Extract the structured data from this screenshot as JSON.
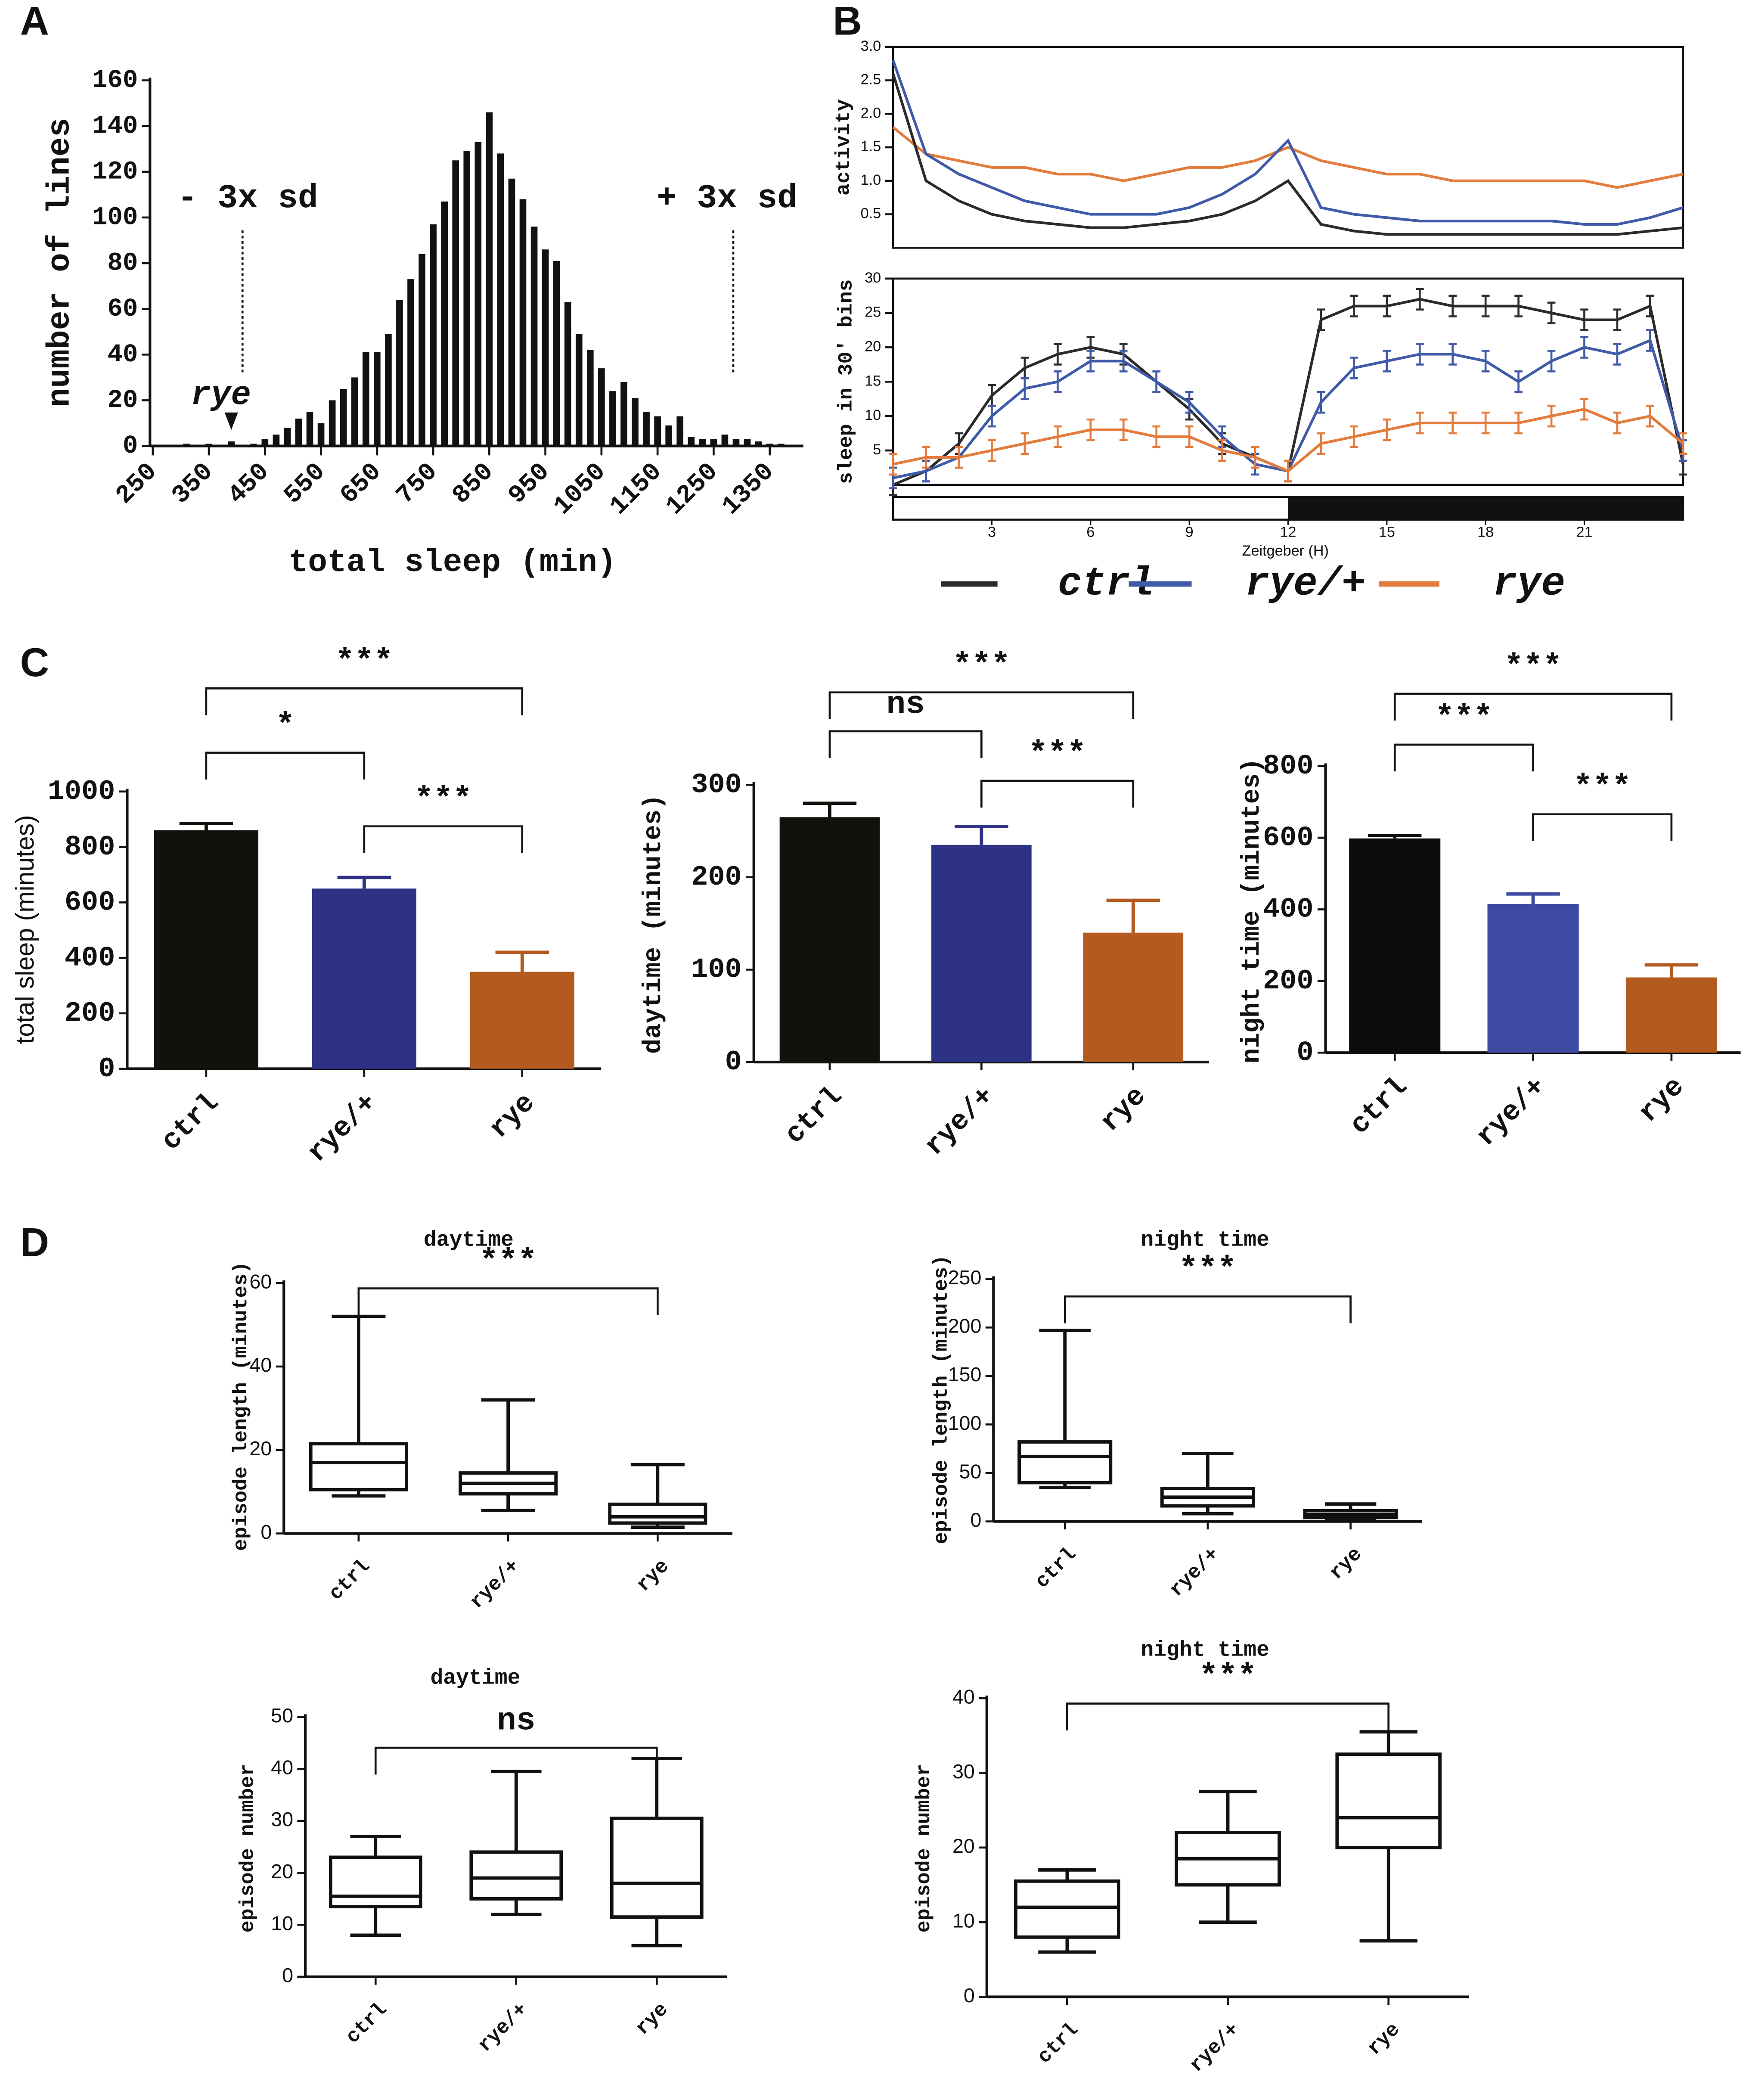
{
  "chart_data": [
    {
      "type": "bar",
      "panel": "A",
      "xlabel": "total sleep (min)",
      "ylabel": "number of lines",
      "color": "#111111",
      "x": [
        290,
        310,
        330,
        350,
        370,
        390,
        410,
        430,
        450,
        470,
        490,
        510,
        530,
        550,
        570,
        590,
        610,
        630,
        650,
        670,
        690,
        710,
        730,
        750,
        770,
        790,
        810,
        830,
        850,
        870,
        890,
        910,
        930,
        950,
        970,
        990,
        1010,
        1030,
        1050,
        1070,
        1090,
        1110,
        1130,
        1150,
        1170,
        1190,
        1210,
        1230,
        1250,
        1270,
        1290,
        1310,
        1330,
        1350,
        1370
      ],
      "values": [
        0,
        1,
        0,
        1,
        0,
        2,
        0,
        1,
        3,
        5,
        8,
        12,
        15,
        10,
        20,
        25,
        30,
        41,
        41,
        49,
        64,
        73,
        84,
        97,
        107,
        125,
        129,
        133,
        146,
        128,
        117,
        108,
        96,
        86,
        81,
        63,
        49,
        42,
        34,
        24,
        28,
        21,
        15,
        13,
        9,
        13,
        4,
        3,
        3,
        5,
        3,
        3,
        2,
        1,
        1
      ],
      "xlim": [
        245,
        1410
      ],
      "xticks": [
        250,
        350,
        450,
        550,
        650,
        750,
        850,
        950,
        1050,
        1150,
        1250,
        1350
      ],
      "ylim": [
        0,
        160
      ],
      "yticks": [
        0,
        20,
        40,
        60,
        80,
        100,
        120,
        140,
        160
      ],
      "reference_lines": [
        410,
        1285
      ],
      "annotations": [
        {
          "text": "- 3x sd"
        },
        {
          "text": "+ 3x sd"
        },
        {
          "text": "rye",
          "x": 390
        }
      ]
    },
    {
      "type": "line",
      "panel": "B",
      "ylabel": "activity",
      "xlim": [
        0,
        24
      ],
      "ylim": [
        0,
        3
      ],
      "yticks": [
        0.5,
        {
          "value": 1,
          "label": "1.0"
        },
        1.5,
        {
          "value": 2,
          "label": "2.0"
        },
        2.5,
        {
          "value": 3,
          "label": "3.0"
        }
      ],
      "x": [
        0,
        1,
        2,
        3,
        4,
        5,
        6,
        7,
        8,
        9,
        10,
        11,
        12,
        13,
        14,
        15,
        16,
        17,
        18,
        19,
        20,
        21,
        22,
        23,
        24
      ],
      "series": [
        {
          "color": "#e37b3c",
          "values": [
            1.8,
            1.4,
            1.3,
            1.2,
            1.2,
            1.1,
            1.1,
            1.0,
            1.1,
            1.2,
            1.2,
            1.3,
            1.5,
            1.3,
            1.2,
            1.1,
            1.1,
            1.0,
            1.0,
            1.0,
            1.0,
            1.0,
            0.9,
            1.0,
            1.1
          ]
        },
        {
          "color": "#3f5aa8",
          "values": [
            2.8,
            1.4,
            1.1,
            0.9,
            0.7,
            0.6,
            0.5,
            0.5,
            0.5,
            0.6,
            0.8,
            1.1,
            1.6,
            0.6,
            0.5,
            0.45,
            0.4,
            0.4,
            0.4,
            0.4,
            0.4,
            0.35,
            0.35,
            0.45,
            0.6
          ]
        },
        {
          "color": "#2b2b2b",
          "values": [
            2.6,
            1.0,
            0.7,
            0.5,
            0.4,
            0.35,
            0.3,
            0.3,
            0.35,
            0.4,
            0.5,
            0.7,
            1.0,
            0.35,
            0.25,
            0.2,
            0.2,
            0.2,
            0.2,
            0.2,
            0.2,
            0.2,
            0.2,
            0.25,
            0.3
          ]
        }
      ]
    },
    {
      "type": "line",
      "xlabel": "Zeitgeber (H)",
      "ylabel": "sleep in 30′ bins",
      "xlim": [
        0,
        24
      ],
      "xticks": [
        3,
        6,
        9,
        12,
        15,
        18,
        21
      ],
      "ylim": [
        0,
        30
      ],
      "yticks": [
        5,
        10,
        15,
        20,
        25,
        30
      ],
      "x": [
        0,
        1,
        2,
        3,
        4,
        5,
        6,
        7,
        8,
        9,
        10,
        11,
        12,
        13,
        14,
        15,
        16,
        17,
        18,
        19,
        20,
        21,
        22,
        23,
        24
      ],
      "series": [
        {
          "name": "ctrl",
          "color": "#2b2b2b",
          "values": [
            0,
            2,
            6,
            13,
            17,
            19,
            20,
            19,
            15,
            11,
            6,
            4,
            2,
            24,
            26,
            26,
            27,
            26,
            26,
            26,
            25,
            24,
            24,
            26,
            3
          ],
          "errors": [
            1.5,
            1.5,
            1.5,
            1.5,
            1.5,
            1.5,
            1.5,
            1.5,
            1.5,
            1.5,
            1.5,
            1.5,
            1.5,
            1.5,
            1.5,
            1.5,
            1.5,
            1.5,
            1.5,
            1.5,
            1.5,
            1.5,
            1.5,
            1.5,
            1.5
          ]
        },
        {
          "name": "rye/+",
          "color": "#3f5aa8",
          "values": [
            1,
            2,
            4,
            10,
            14,
            15,
            18,
            18,
            15,
            12,
            7,
            3,
            2,
            12,
            17,
            18,
            19,
            19,
            18,
            15,
            18,
            20,
            19,
            21,
            5
          ],
          "errors": [
            1.5,
            1.5,
            1.5,
            1.5,
            1.5,
            1.5,
            1.5,
            1.5,
            1.5,
            1.5,
            1.5,
            1.5,
            1.5,
            1.5,
            1.5,
            1.5,
            1.5,
            1.5,
            1.5,
            1.5,
            1.5,
            1.5,
            1.5,
            1.5,
            1.5
          ]
        },
        {
          "name": "rye",
          "color": "#e37b3c",
          "values": [
            3,
            4,
            4,
            5,
            6,
            7,
            8,
            8,
            7,
            7,
            5,
            4,
            2,
            6,
            7,
            8,
            9,
            9,
            9,
            9,
            10,
            11,
            9,
            10,
            6
          ],
          "errors": [
            1.5,
            1.5,
            1.5,
            1.5,
            1.5,
            1.5,
            1.5,
            1.5,
            1.5,
            1.5,
            1.5,
            1.5,
            1.5,
            1.5,
            1.5,
            1.5,
            1.5,
            1.5,
            1.5,
            1.5,
            1.5,
            1.5,
            1.5,
            1.5,
            1.5
          ]
        }
      ]
    },
    {
      "type": "bar",
      "panel": "C",
      "ylabel": "total sleep (minutes)",
      "categories": [
        "ctrl",
        "rye/+",
        "rye"
      ],
      "values": [
        860,
        650,
        350
      ],
      "errors": [
        25,
        40,
        70
      ],
      "colors": [
        "#12110c",
        "#2e3285",
        "#b35a1f"
      ],
      "ylim": [
        0,
        1000
      ],
      "yticks": [
        0,
        200,
        400,
        600,
        800,
        1000
      ],
      "brackets": [
        {
          "between": [
            "ctrl",
            "rye"
          ],
          "label": "***"
        },
        {
          "between": [
            "ctrl",
            "rye/+"
          ],
          "label": "*"
        },
        {
          "between": [
            "rye/+",
            "rye"
          ],
          "label": "***"
        }
      ]
    },
    {
      "type": "bar",
      "ylabel": "daytime (minutes)",
      "categories": [
        "ctrl",
        "rye/+",
        "rye"
      ],
      "values": [
        265,
        235,
        140
      ],
      "errors": [
        15,
        20,
        35
      ],
      "colors": [
        "#12110c",
        "#2e3285",
        "#b35a1f"
      ],
      "ylim": [
        0,
        300
      ],
      "yticks": [
        0,
        100,
        200,
        300
      ],
      "brackets": [
        {
          "between": [
            "ctrl",
            "rye"
          ],
          "label": "***"
        },
        {
          "between": [
            "ctrl",
            "rye/+"
          ],
          "label": "ns"
        },
        {
          "between": [
            "rye/+",
            "rye"
          ],
          "label": "***"
        }
      ]
    },
    {
      "type": "bar",
      "ylabel": "night time (minutes)",
      "categories": [
        "ctrl",
        "rye/+",
        "rye"
      ],
      "values": [
        598,
        415,
        210
      ],
      "errors": [
        8,
        28,
        35
      ],
      "colors": [
        "#0c0c0c",
        "#3d4aa1",
        "#b35a1f"
      ],
      "ylim": [
        0,
        800
      ],
      "yticks": [
        0,
        200,
        400,
        600,
        800
      ],
      "brackets": [
        {
          "between": [
            "ctrl",
            "rye"
          ],
          "label": "***"
        },
        {
          "between": [
            "ctrl",
            "rye/+"
          ],
          "label": "***"
        },
        {
          "between": [
            "rye/+",
            "rye"
          ],
          "label": "***"
        }
      ]
    },
    {
      "type": "box",
      "panel": "D",
      "title": "daytime",
      "ylabel": "episode length (minutes)",
      "categories": [
        "ctrl",
        "rye/+",
        "rye"
      ],
      "stats": [
        [
          9,
          10.5,
          17,
          21.5,
          52
        ],
        [
          5.5,
          9.5,
          12,
          14.5,
          32
        ],
        [
          1.5,
          2.5,
          4,
          7,
          16.5
        ]
      ],
      "ylim": [
        0,
        60
      ],
      "yticks": [
        0,
        20,
        40,
        60
      ],
      "brackets": [
        {
          "between": [
            "ctrl",
            "rye"
          ],
          "label": "***"
        }
      ]
    },
    {
      "type": "box",
      "title": "night time",
      "ylabel": "episode length (minutes)",
      "categories": [
        "ctrl",
        "rye/+",
        "rye"
      ],
      "stats": [
        [
          35,
          40,
          67,
          82,
          197
        ],
        [
          8,
          16,
          25,
          34,
          70
        ],
        [
          2,
          4,
          7,
          11,
          18
        ]
      ],
      "ylim": [
        0,
        250
      ],
      "yticks": [
        0,
        50,
        100,
        150,
        200,
        250
      ],
      "brackets": [
        {
          "between": [
            "ctrl",
            "rye"
          ],
          "label": "***"
        }
      ]
    },
    {
      "type": "box",
      "title": "daytime",
      "ylabel": "episode number",
      "categories": [
        "ctrl",
        "rye/+",
        "rye"
      ],
      "stats": [
        [
          8,
          13.5,
          15.5,
          23,
          27
        ],
        [
          12,
          15,
          19,
          24,
          39.5
        ],
        [
          6,
          11.5,
          18,
          30.5,
          42
        ]
      ],
      "ylim": [
        0,
        50
      ],
      "yticks": [
        0,
        10,
        20,
        30,
        40,
        50
      ],
      "brackets": [
        {
          "between": [
            "ctrl",
            "rye"
          ],
          "label": "ns"
        }
      ]
    },
    {
      "type": "box",
      "title": "night time",
      "ylabel": "episode number",
      "categories": [
        "ctrl",
        "rye/+",
        "rye"
      ],
      "stats": [
        [
          6,
          8,
          12,
          15.5,
          17
        ],
        [
          10,
          15,
          18.5,
          22,
          27.5
        ],
        [
          7.5,
          20,
          24,
          32.5,
          35.5
        ]
      ],
      "ylim": [
        0,
        40
      ],
      "yticks": [
        0,
        10,
        20,
        30,
        40
      ],
      "brackets": [
        {
          "between": [
            "ctrl",
            "rye"
          ],
          "label": "***"
        }
      ]
    }
  ]
}
